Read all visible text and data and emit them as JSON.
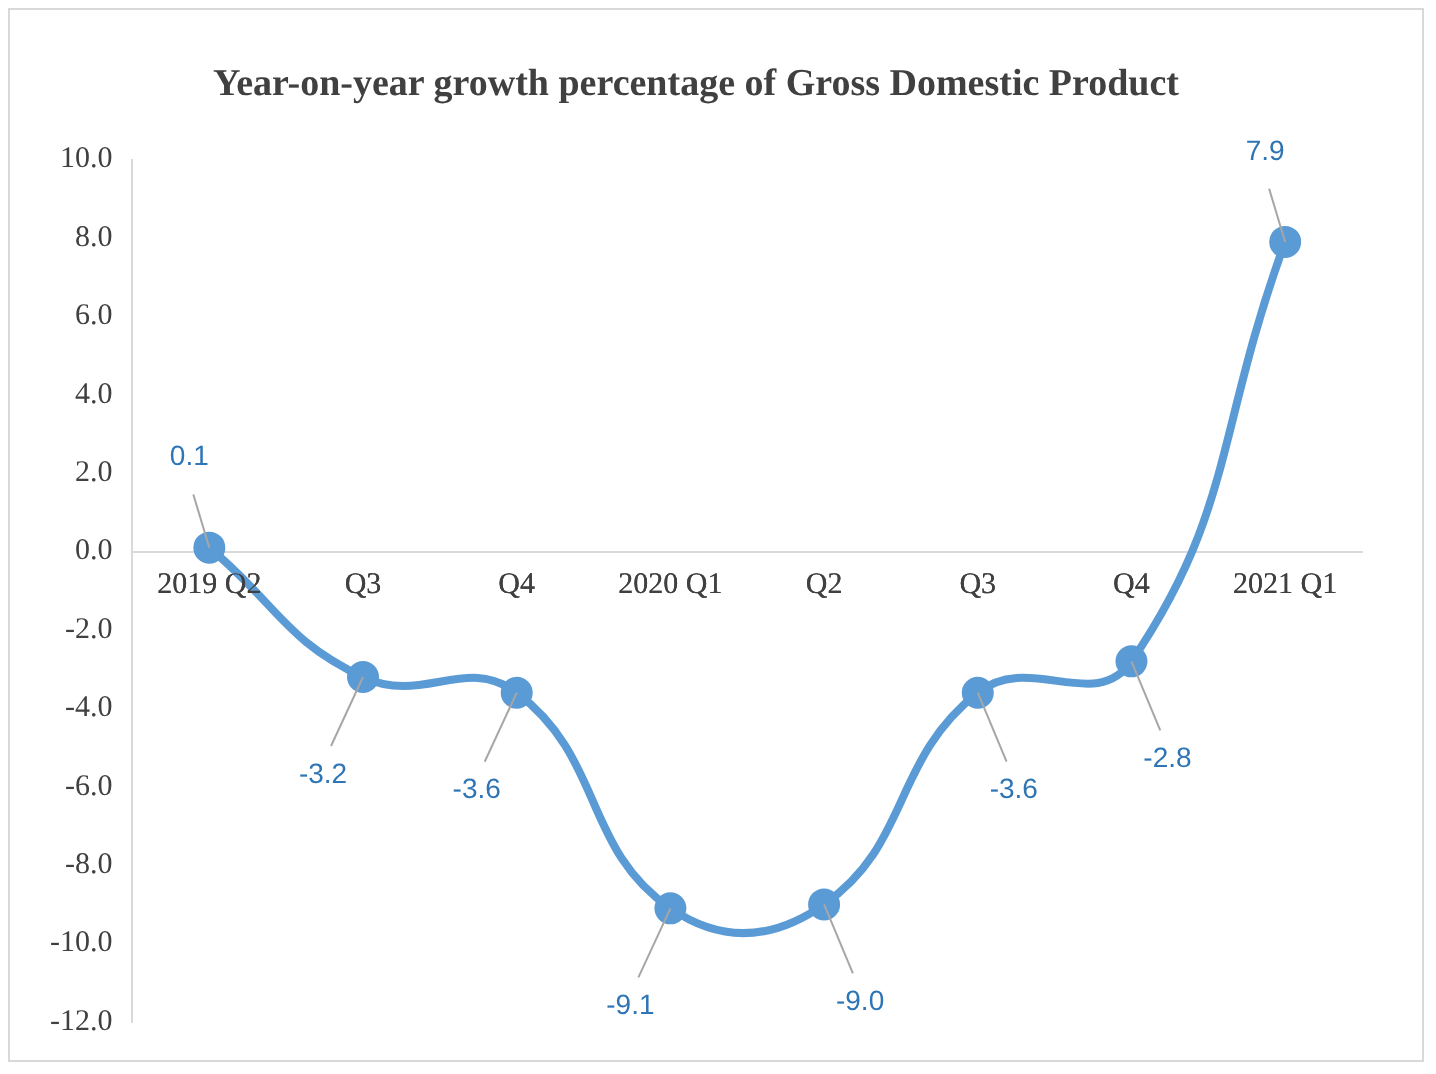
{
  "chart_data": {
    "type": "line",
    "title": "Year-on-year growth percentage of Gross Domestic Product",
    "categories": [
      "2019 Q2",
      "Q3",
      "Q4",
      "2020 Q1",
      "Q2",
      "Q3",
      "Q4",
      "2021 Q1"
    ],
    "series": [
      {
        "color": "#5b9bd5",
        "values": [
          0.1,
          -3.2,
          -3.6,
          -9.1,
          -9.0,
          -3.6,
          -2.8,
          7.9
        ],
        "value_labels": [
          "0.1",
          "-3.2",
          "-3.6",
          "-9.1",
          "-9.0",
          "-3.6",
          "-2.8",
          "7.9"
        ]
      }
    ],
    "ylim": [
      -12,
      10
    ],
    "yticks": [
      {
        "value": -12,
        "label": "-12.0"
      },
      {
        "value": -10,
        "label": "-10.0"
      },
      {
        "value": -8,
        "label": "-8.0"
      },
      {
        "value": -6,
        "label": "-6.0"
      },
      {
        "value": -4,
        "label": "-4.0"
      },
      {
        "value": -2,
        "label": "-2.0"
      },
      {
        "value": 0,
        "label": "0.0"
      },
      {
        "value": 2,
        "label": "2.0"
      },
      {
        "value": 4,
        "label": "4.0"
      },
      {
        "value": 6,
        "label": "6.0"
      },
      {
        "value": 8,
        "label": "8.0"
      },
      {
        "value": 10,
        "label": "10.0"
      }
    ],
    "grid": false,
    "legend": false,
    "marker": "circle",
    "line_style": "solid"
  }
}
